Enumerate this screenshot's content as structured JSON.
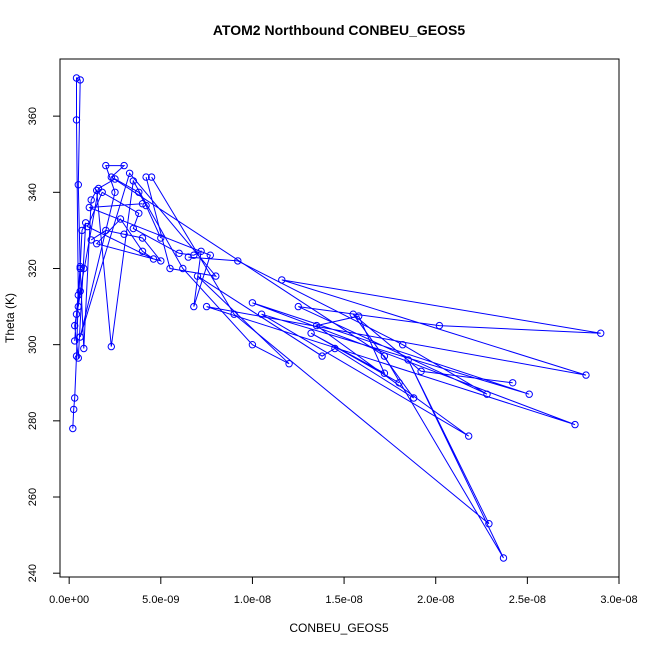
{
  "chart_data": {
    "type": "line",
    "title": "ATOM2 Northbound CONBEU_GEOS5",
    "xlabel": "CONBEU_GEOS5",
    "ylabel": "Theta (K)",
    "xlim": [
      -5e-10,
      3e-08
    ],
    "ylim": [
      239,
      375
    ],
    "x_ticks": [
      0,
      5e-09,
      1e-08,
      1.5e-08,
      2e-08,
      2.5e-08,
      3e-08
    ],
    "x_tick_labels": [
      "0.0e+00",
      "5.0e-09",
      "1.0e-08",
      "1.5e-08",
      "2.0e-08",
      "2.5e-08",
      "3.0e-08"
    ],
    "y_ticks": [
      240,
      260,
      280,
      300,
      320,
      340,
      360
    ],
    "y_tick_labels": [
      "240",
      "260",
      "280",
      "300",
      "320",
      "340",
      "360"
    ],
    "series_color": "#0000ff",
    "marker": "open-circle",
    "grid": false,
    "legend": "none",
    "series": [
      {
        "points": [
          [
            2e-10,
            278
          ],
          [
            2.5e-10,
            283
          ],
          [
            3e-10,
            286
          ],
          [
            4e-10,
            297
          ],
          [
            5e-10,
            313
          ],
          [
            4e-10,
            359
          ],
          [
            4e-10,
            370
          ],
          [
            6e-10,
            369.5
          ],
          [
            5e-10,
            342
          ],
          [
            6e-10,
            320
          ],
          [
            8e-10,
            299
          ],
          [
            1.2e-09,
            338
          ],
          [
            1.5e-09,
            340.5
          ],
          [
            2.3e-09,
            299.5
          ],
          [
            3.5e-09,
            343
          ],
          [
            6.2e-09,
            320
          ],
          [
            1e-08,
            300
          ],
          [
            1.2e-08,
            295
          ],
          [
            7e-09,
            318
          ],
          [
            1.38e-08,
            297
          ],
          [
            1.45e-08,
            299
          ],
          [
            1.88e-08,
            286
          ],
          [
            1.55e-08,
            308
          ],
          [
            1.92e-08,
            293
          ],
          [
            2.42e-08,
            290
          ]
        ]
      },
      {
        "points": [
          [
            6.5e-09,
            323
          ],
          [
            9.2e-09,
            322
          ],
          [
            1.82e-08,
            300
          ],
          [
            2.28e-08,
            287
          ],
          [
            1.25e-08,
            310
          ],
          [
            2.02e-08,
            305
          ],
          [
            2.9e-08,
            303
          ],
          [
            1.16e-08,
            317
          ],
          [
            2.82e-08,
            292
          ],
          [
            7.5e-09,
            310
          ],
          [
            2.76e-08,
            279
          ],
          [
            1e-08,
            311
          ],
          [
            2.51e-08,
            287
          ],
          [
            1.05e-08,
            308
          ],
          [
            2.18e-08,
            276
          ],
          [
            1.35e-08,
            305
          ],
          [
            1.58e-08,
            307.5
          ],
          [
            1.72e-08,
            292.5
          ],
          [
            1.32e-08,
            303
          ],
          [
            1.8e-08,
            290
          ]
        ]
      },
      {
        "points": [
          [
            4.5e-09,
            344
          ],
          [
            9e-09,
            308
          ],
          [
            2.29e-08,
            253
          ],
          [
            1.85e-08,
            296
          ],
          [
            2.37e-08,
            244
          ],
          [
            1.72e-08,
            297
          ],
          [
            2.3e-09,
            344
          ],
          [
            3e-09,
            347
          ],
          [
            2e-09,
            347
          ],
          [
            2.5e-09,
            340
          ],
          [
            6e-10,
            302
          ],
          [
            3.3e-09,
            345
          ],
          [
            8e-09,
            318
          ],
          [
            5.5e-09,
            320
          ],
          [
            4.2e-09,
            344
          ]
        ]
      },
      {
        "points": [
          [
            1.2e-09,
            327.5
          ],
          [
            2e-09,
            330
          ],
          [
            3e-09,
            329
          ],
          [
            4e-09,
            328
          ],
          [
            5e-09,
            322
          ],
          [
            1.5e-09,
            326.5
          ],
          [
            2.8e-09,
            333
          ],
          [
            4e-09,
            324.5
          ],
          [
            4.6e-09,
            322.5
          ],
          [
            1e-09,
            331
          ],
          [
            1.8e-09,
            340
          ],
          [
            3.8e-09,
            334.5
          ],
          [
            3.5e-09,
            330.5
          ],
          [
            6e-09,
            324
          ],
          [
            6.8e-09,
            323.5
          ],
          [
            7.2e-09,
            324.5
          ],
          [
            6.8e-09,
            310
          ],
          [
            7.7e-09,
            323.5
          ],
          [
            1.1e-09,
            336
          ],
          [
            4e-09,
            337
          ]
        ]
      },
      {
        "points": [
          [
            3e-10,
            301
          ],
          [
            4e-10,
            308
          ],
          [
            6e-10,
            320.5
          ],
          [
            8e-10,
            320
          ],
          [
            5e-10,
            310
          ],
          [
            7e-10,
            330
          ],
          [
            9e-10,
            332
          ],
          [
            5e-10,
            296.5
          ],
          [
            3e-10,
            305
          ],
          [
            6e-10,
            314
          ],
          [
            1.6e-09,
            341
          ],
          [
            2.5e-09,
            343.5
          ],
          [
            3.8e-09,
            340
          ],
          [
            4.2e-09,
            336.5
          ],
          [
            5e-09,
            328
          ]
        ]
      }
    ]
  }
}
